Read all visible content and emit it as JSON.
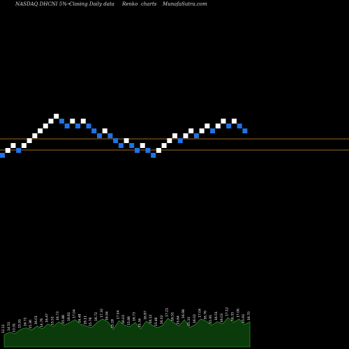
{
  "header": {
    "ticker": "NASDAQ DHCNI 5%~",
    "type_label": "Closing Daily data",
    "chart_style": "Renko",
    "charts_word": "charts",
    "brand": "MunafaSutra.com"
  },
  "colors": {
    "background": "#000000",
    "up_brick": "#ffffff",
    "down_brick": "#1e73e6",
    "support_line": "#a06a20",
    "volume_fill": "#0b3a0b",
    "volume_stroke": "#2e8b2e"
  },
  "chart_data": {
    "type": "renko",
    "title": "NASDAQ DHCNI 5%~ Closing Daily data Renko charts",
    "brick_directions": [
      "down",
      "up",
      "up",
      "down",
      "up",
      "up",
      "up",
      "up",
      "up",
      "up",
      "up",
      "down",
      "down",
      "up",
      "down",
      "up",
      "down",
      "down",
      "down",
      "up",
      "down",
      "down",
      "down",
      "up",
      "down",
      "down",
      "up",
      "down",
      "down",
      "up",
      "up",
      "up",
      "up",
      "down",
      "up",
      "up",
      "down",
      "up",
      "up",
      "down",
      "up",
      "up",
      "down",
      "up",
      "down",
      "down"
    ],
    "horizontal_levels": [
      "upper",
      "lower"
    ],
    "volume_labels": [
      "12.11",
      "14.51",
      "13.91",
      "15.91",
      "16.71",
      "15.36",
      "16.01",
      "14.76",
      "16.47",
      "15.51",
      "16.73",
      "15.88",
      "16.61",
      "17.04",
      "16.48",
      "16.11",
      "15.76",
      "16.72",
      "17.32",
      "16.94",
      "15.18",
      "17.04",
      "16.03",
      "15.88",
      "16.73",
      "15.34",
      "16.87",
      "16.12",
      "15.46",
      "16.02",
      "17.21",
      "16.51",
      "15.64",
      "16.98",
      "15.33",
      "16.02",
      "17.04",
      "16.76",
      "15.91",
      "16.51",
      "16.03",
      "17.12",
      "16.33",
      "17.06",
      "15.93",
      "16.70"
    ],
    "volume_levels": [
      0.35,
      0.42,
      0.38,
      0.5,
      0.55,
      0.48,
      0.6,
      0.52,
      0.66,
      0.58,
      0.72,
      0.62,
      0.7,
      0.78,
      0.65,
      0.6,
      0.55,
      0.7,
      0.8,
      0.72,
      0.5,
      0.75,
      0.62,
      0.58,
      0.7,
      0.52,
      0.74,
      0.63,
      0.55,
      0.61,
      0.82,
      0.7,
      0.6,
      0.78,
      0.56,
      0.64,
      0.8,
      0.74,
      0.62,
      0.72,
      0.66,
      0.84,
      0.7,
      0.8,
      0.64,
      0.72
    ]
  }
}
